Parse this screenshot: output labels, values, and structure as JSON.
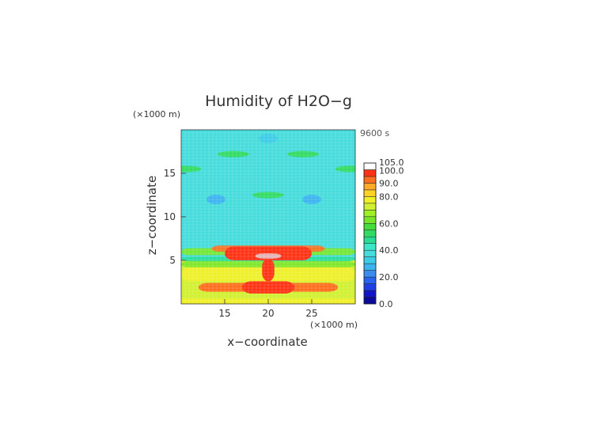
{
  "chart_data": {
    "type": "heatmap",
    "title": "Humidity of H2O−g",
    "time_label": "9600 s",
    "xlabel": "x−coordinate",
    "ylabel": "z−coordinate",
    "x_unit": "(×1000 m)",
    "y_unit": "(×1000 m)",
    "xlim": [
      10,
      30
    ],
    "ylim": [
      0,
      20
    ],
    "x_ticks": [
      15,
      20,
      25
    ],
    "y_ticks": [
      5,
      10,
      15
    ],
    "colorbar": {
      "range": [
        0,
        105
      ],
      "tick_values": [
        0,
        20,
        40,
        60,
        80,
        90,
        100,
        105
      ],
      "tick_labels": [
        "0.0",
        "20.0",
        "40.0",
        "60.0",
        "80.0",
        "90.0",
        "100.0",
        "105.0"
      ],
      "levels": [
        {
          "from": 0,
          "to": 5,
          "color": "#0a0a9c"
        },
        {
          "from": 5,
          "to": 10,
          "color": "#1414c8"
        },
        {
          "from": 10,
          "to": 15,
          "color": "#1e40e6"
        },
        {
          "from": 15,
          "to": 20,
          "color": "#2864f0"
        },
        {
          "from": 20,
          "to": 25,
          "color": "#3c8cf0"
        },
        {
          "from": 25,
          "to": 30,
          "color": "#3cb4f0"
        },
        {
          "from": 30,
          "to": 35,
          "color": "#3ccce6"
        },
        {
          "from": 35,
          "to": 40,
          "color": "#46dcdc"
        },
        {
          "from": 40,
          "to": 45,
          "color": "#3ce6c8"
        },
        {
          "from": 45,
          "to": 50,
          "color": "#28dc96"
        },
        {
          "from": 50,
          "to": 55,
          "color": "#32dc64"
        },
        {
          "from": 55,
          "to": 60,
          "color": "#46dc3c"
        },
        {
          "from": 60,
          "to": 65,
          "color": "#78e628"
        },
        {
          "from": 65,
          "to": 70,
          "color": "#a0f028"
        },
        {
          "from": 70,
          "to": 75,
          "color": "#d2f032"
        },
        {
          "from": 75,
          "to": 80,
          "color": "#f0f028"
        },
        {
          "from": 80,
          "to": 85,
          "color": "#ffd228"
        },
        {
          "from": 85,
          "to": 90,
          "color": "#ffaa28"
        },
        {
          "from": 90,
          "to": 95,
          "color": "#ff6e1e"
        },
        {
          "from": 95,
          "to": 100,
          "color": "#ff3214"
        },
        {
          "from": 100,
          "to": 105,
          "color": "#e6b4b4"
        }
      ]
    },
    "regions": [
      {
        "label": "background",
        "value": 42,
        "x": [
          10,
          30
        ],
        "z": [
          0,
          20
        ]
      },
      {
        "label": "lower-layer",
        "value": 70,
        "x": [
          10,
          30
        ],
        "z": [
          0,
          5
        ]
      },
      {
        "label": "surface-band",
        "value": 78,
        "x": [
          10,
          30
        ],
        "z": [
          0,
          0.6
        ]
      },
      {
        "label": "low-band",
        "value": 92,
        "x": [
          12,
          28
        ],
        "z": [
          1.4,
          2.4
        ]
      },
      {
        "label": "core-low",
        "value": 97,
        "x": [
          17,
          23
        ],
        "z": [
          1.2,
          2.6
        ]
      },
      {
        "label": "stem",
        "value": 96,
        "x": [
          19.3,
          20.7
        ],
        "z": [
          2.6,
          5.2
        ]
      },
      {
        "label": "anvil",
        "value": 97,
        "x": [
          15,
          25
        ],
        "z": [
          5.0,
          6.6
        ]
      },
      {
        "label": "anvil-supersat",
        "value": 102,
        "x": [
          18.5,
          21.5
        ],
        "z": [
          5.2,
          5.8
        ]
      }
    ],
    "dry_patches": [
      {
        "value": 25,
        "x": 14,
        "z": 12.0
      },
      {
        "value": 25,
        "x": 25,
        "z": 12.0
      },
      {
        "value": 30,
        "x": 20,
        "z": 19.0
      },
      {
        "value": 38,
        "x": 20,
        "z": 8.0
      }
    ],
    "moist_patches": [
      {
        "value": 52,
        "x": 16,
        "z": 17.2
      },
      {
        "value": 52,
        "x": 24,
        "z": 17.2
      },
      {
        "value": 52,
        "x": 20,
        "z": 12.5
      },
      {
        "value": 52,
        "x": 10.5,
        "z": 15.5
      },
      {
        "value": 52,
        "x": 29.5,
        "z": 15.5
      }
    ]
  }
}
